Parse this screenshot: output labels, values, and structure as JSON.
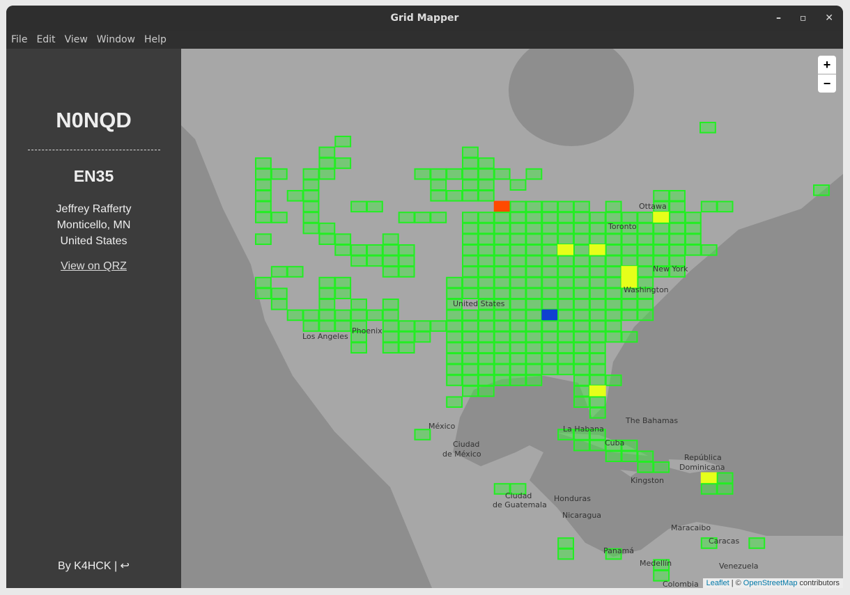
{
  "window": {
    "title": "Grid Mapper"
  },
  "menu": [
    "File",
    "Edit",
    "View",
    "Window",
    "Help"
  ],
  "sidebar": {
    "callsign": "N0NQD",
    "grid": "EN35",
    "name": "Jeffrey Rafferty",
    "location": "Monticello, MN",
    "country": "United States",
    "link": "View on QRZ",
    "footer": "By K4HCK | ↩"
  },
  "map": {
    "zoom_in": "+",
    "zoom_out": "−",
    "labels": [
      "Ottawa",
      "Toronto",
      "New York",
      "Washington",
      "United States",
      "Los Angeles",
      "Phoenix",
      "México",
      "Ciudad",
      "de México",
      "The Bahamas",
      "La Habana",
      "Cuba",
      "Kingston",
      "República",
      "Dominicana",
      "Ciudad",
      "de Guatemala",
      "Honduras",
      "Nicaragua",
      "Panamá",
      "Maracaibo",
      "Caracas",
      "Venezuela",
      "Medellín",
      "Colombia"
    ],
    "attribution": {
      "leaflet": "Leaflet",
      "sep": "| ©",
      "osm": "OpenStreetMap",
      "tail": "contributors"
    }
  }
}
